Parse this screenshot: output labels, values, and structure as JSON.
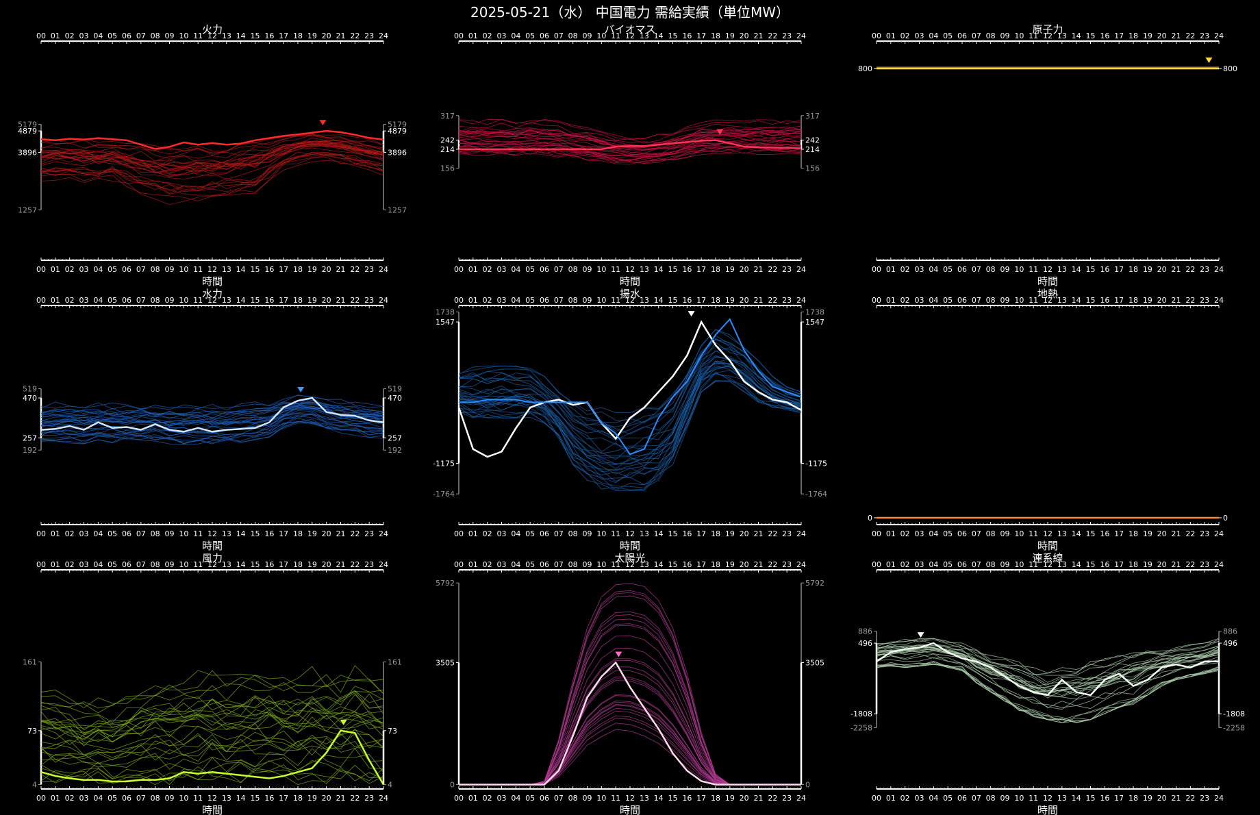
{
  "title": "2025-05-21（水） 中国電力 需給実績（単位MW）",
  "hour_labels": [
    "00",
    "01",
    "02",
    "03",
    "04",
    "05",
    "06",
    "07",
    "08",
    "09",
    "10",
    "11",
    "12",
    "13",
    "14",
    "15",
    "16",
    "17",
    "18",
    "19",
    "20",
    "21",
    "22",
    "23",
    "24"
  ],
  "xlabel": "時間",
  "chart_data": [
    {
      "id": "thermal",
      "type": "line",
      "title": "火力",
      "color": "#ff2a2a",
      "history_color": "#b01818",
      "ylim": [
        1257,
        5179
      ],
      "left_ticks": [
        5179,
        4879,
        3896,
        1257
      ],
      "right_ticks": [
        5179,
        4879,
        3896,
        1257
      ],
      "today_label": 3896,
      "peak": {
        "x": 19.75,
        "y": 4879
      },
      "series": [
        {
          "name": "2025-05-21",
          "values": [
            4500,
            4450,
            4520,
            4480,
            4550,
            4500,
            4450,
            4250,
            4050,
            4150,
            4350,
            4250,
            4320,
            4250,
            4300,
            4450,
            4550,
            4650,
            4720,
            4800,
            4879,
            4820,
            4700,
            4560,
            4480
          ]
        }
      ],
      "history_bands": {
        "low": [
          2500,
          2450,
          2450,
          2400,
          2400,
          2500,
          2200,
          1800,
          1550,
          1500,
          1500,
          1500,
          1500,
          1600,
          1700,
          1800,
          2300,
          3000,
          3300,
          3400,
          3400,
          3300,
          3100,
          2900,
          2700
        ],
        "high": [
          4400,
          4500,
          4500,
          4500,
          4400,
          4400,
          4300,
          4300,
          4200,
          4100,
          4200,
          4200,
          4200,
          4200,
          4300,
          4400,
          4500,
          4600,
          4700,
          4800,
          4800,
          4700,
          4600,
          4500,
          4400
        ]
      },
      "history_count": 30
    },
    {
      "id": "biomass",
      "type": "line",
      "title": "バイオマス",
      "color": "#ff3355",
      "history_color": "#c01040",
      "ylim": [
        156,
        317
      ],
      "left_ticks": [
        317,
        242,
        214,
        156
      ],
      "right_ticks": [
        317,
        242,
        214,
        156
      ],
      "today_label": 214,
      "peak": {
        "x": 18.3,
        "y": 242
      },
      "series": [
        {
          "name": "2025-05-21",
          "values": [
            214,
            214,
            214,
            214,
            214,
            214,
            214,
            214,
            214,
            214,
            214,
            222,
            224,
            224,
            228,
            232,
            236,
            240,
            242,
            232,
            222,
            220,
            219,
            218,
            217
          ]
        }
      ],
      "history_bands": {
        "low": [
          195,
          195,
          195,
          195,
          195,
          195,
          195,
          190,
          185,
          180,
          175,
          170,
          168,
          168,
          170,
          175,
          185,
          195,
          198,
          198,
          198,
          198,
          198,
          198,
          198
        ],
        "high": [
          305,
          305,
          305,
          305,
          305,
          305,
          305,
          300,
          290,
          280,
          270,
          260,
          255,
          255,
          260,
          270,
          285,
          300,
          305,
          305,
          305,
          305,
          305,
          305,
          305
        ]
      },
      "history_count": 30
    },
    {
      "id": "nuclear",
      "type": "line",
      "title": "原子力",
      "color": "#ffd54a",
      "history_color": "#c9a62c",
      "ylim": [
        0,
        800
      ],
      "left_ticks": [
        800
      ],
      "right_ticks": [
        800
      ],
      "today_label": 800,
      "peak": {
        "x": 23.3,
        "y": 800
      },
      "series": [
        {
          "name": "2025-05-21",
          "values": [
            800,
            800,
            800,
            800,
            800,
            800,
            800,
            800,
            800,
            800,
            800,
            800,
            800,
            800,
            800,
            800,
            800,
            800,
            800,
            800,
            800,
            800,
            800,
            800,
            800
          ]
        }
      ],
      "history_bands": {
        "low": [
          796,
          796,
          796,
          796,
          796,
          796,
          796,
          796,
          796,
          796,
          796,
          796,
          796,
          796,
          796,
          796,
          796,
          796,
          796,
          796,
          796,
          796,
          796,
          796,
          796
        ],
        "high": [
          804,
          804,
          804,
          804,
          804,
          804,
          804,
          804,
          804,
          804,
          804,
          804,
          804,
          804,
          804,
          804,
          804,
          804,
          804,
          804,
          804,
          804,
          804,
          804,
          804
        ]
      },
      "history_count": 6,
      "flat_top": true
    },
    {
      "id": "hydro",
      "type": "line",
      "title": "水力",
      "color": "#3d9bff",
      "history_color": "#1f5fb8",
      "ylim": [
        192,
        519
      ],
      "left_ticks": [
        519,
        470,
        257,
        192
      ],
      "right_ticks": [
        519,
        470,
        257,
        192
      ],
      "today_label": 257,
      "peak": {
        "x": 18.2,
        "y": 470
      },
      "series": [
        {
          "name": "2025-05-21",
          "values": [
            300,
            305,
            320,
            300,
            340,
            310,
            315,
            300,
            330,
            300,
            290,
            310,
            290,
            300,
            305,
            310,
            340,
            420,
            455,
            470,
            395,
            380,
            375,
            350,
            340
          ]
        }
      ],
      "history_bands": {
        "low": [
          230,
          225,
          230,
          225,
          235,
          230,
          240,
          235,
          240,
          225,
          220,
          225,
          225,
          230,
          230,
          240,
          260,
          300,
          330,
          330,
          300,
          280,
          270,
          260,
          250
        ],
        "high": [
          440,
          455,
          460,
          455,
          450,
          450,
          445,
          445,
          440,
          445,
          440,
          445,
          440,
          440,
          445,
          450,
          460,
          480,
          490,
          500,
          485,
          470,
          460,
          450,
          445
        ]
      },
      "history_count": 30
    },
    {
      "id": "pumped",
      "type": "line",
      "title": "揚水",
      "color": "#2a8cff",
      "history_color": "#1a5fa8",
      "ylim": [
        -1764,
        1738
      ],
      "left_ticks": [
        1738,
        1547,
        -1175,
        -1764
      ],
      "right_ticks": [
        1738,
        1547,
        -1175,
        -1764
      ],
      "today_label": -1175,
      "peak": {
        "x": 16.3,
        "y": 1547
      },
      "series": [
        {
          "name": "2025-05-21",
          "values": [
            -100,
            -900,
            -1050,
            -950,
            -500,
            -100,
            0,
            50,
            -50,
            0,
            -400,
            -700,
            -300,
            -100,
            200,
            500,
            900,
            1547,
            1100,
            800,
            400,
            200,
            50,
            0,
            -150
          ]
        },
        {
          "name": "history-highlight",
          "values": [
            0,
            0,
            50,
            50,
            50,
            0,
            0,
            0,
            0,
            0,
            -400,
            -600,
            -1000,
            -900,
            -300,
            100,
            400,
            900,
            1300,
            1600,
            1000,
            600,
            300,
            200,
            100
          ]
        }
      ],
      "history_bands": {
        "low": [
          -200,
          -300,
          -300,
          -300,
          -300,
          -300,
          -400,
          -700,
          -1200,
          -1500,
          -1700,
          -1700,
          -1700,
          -1700,
          -1500,
          -1200,
          -500,
          200,
          400,
          400,
          200,
          0,
          -100,
          -150,
          -200
        ],
        "high": [
          600,
          700,
          700,
          700,
          700,
          700,
          500,
          200,
          0,
          -100,
          -100,
          -200,
          -200,
          -100,
          0,
          200,
          600,
          1100,
          1400,
          1300,
          1100,
          800,
          500,
          300,
          200
        ]
      },
      "history_count": 30
    },
    {
      "id": "geothermal",
      "type": "line",
      "title": "地熱",
      "color": "#ff8a33",
      "history_color": "#c06020",
      "ylim": [
        0,
        1
      ],
      "left_ticks": [
        0.0
      ],
      "right_ticks": [
        0.0
      ],
      "today_label": "0.0",
      "peak": null,
      "series": [
        {
          "name": "2025-05-21",
          "values": [
            0,
            0,
            0,
            0,
            0,
            0,
            0,
            0,
            0,
            0,
            0,
            0,
            0,
            0,
            0,
            0,
            0,
            0,
            0,
            0,
            0,
            0,
            0,
            0,
            0
          ]
        }
      ],
      "history_bands": null,
      "history_count": 0,
      "flat_bottom": true
    },
    {
      "id": "wind",
      "type": "line",
      "title": "風力",
      "color": "#c8ff2a",
      "history_color": "#7aa81a",
      "ylim": [
        4,
        161
      ],
      "left_ticks": [
        161,
        73,
        4
      ],
      "right_ticks": [
        161,
        73,
        4
      ],
      "today_label": 4,
      "peak": {
        "x": 21.2,
        "y": 73
      },
      "series": [
        {
          "name": "2025-05-21",
          "values": [
            20,
            15,
            12,
            10,
            10,
            8,
            8,
            10,
            10,
            12,
            20,
            18,
            20,
            18,
            16,
            14,
            12,
            15,
            20,
            25,
            45,
            73,
            70,
            35,
            4
          ]
        }
      ],
      "history_bands": {
        "low": [
          4,
          4,
          4,
          4,
          4,
          4,
          4,
          4,
          4,
          4,
          4,
          4,
          4,
          4,
          4,
          4,
          4,
          4,
          4,
          4,
          4,
          4,
          4,
          4,
          4
        ],
        "high": [
          130,
          125,
          120,
          110,
          115,
          110,
          120,
          130,
          135,
          140,
          145,
          150,
          150,
          145,
          148,
          150,
          150,
          145,
          150,
          155,
          150,
          145,
          160,
          155,
          140
        ]
      },
      "history_count": 30
    },
    {
      "id": "solar",
      "type": "line",
      "title": "太陽光",
      "color": "#ff66cc",
      "history_color": "#b03a90",
      "ylim": [
        0,
        5792
      ],
      "left_ticks": [
        5792,
        3505,
        0
      ],
      "right_ticks": [
        5792,
        3505,
        0
      ],
      "today_label": 0,
      "peak": {
        "x": 11.2,
        "y": 3505
      },
      "series": [
        {
          "name": "2025-05-21",
          "values": [
            0,
            0,
            0,
            0,
            0,
            0,
            0,
            400,
            1400,
            2500,
            3100,
            3505,
            2800,
            2200,
            1600,
            900,
            400,
            100,
            0,
            0,
            0,
            0,
            0,
            0,
            0
          ]
        }
      ],
      "history_bands": {
        "low": [
          0,
          0,
          0,
          0,
          0,
          0,
          0,
          150,
          500,
          900,
          1100,
          1300,
          1250,
          1100,
          900,
          600,
          300,
          80,
          0,
          0,
          0,
          0,
          0,
          0,
          0
        ],
        "high": [
          0,
          0,
          0,
          0,
          0,
          0,
          100,
          1300,
          3000,
          4500,
          5400,
          5750,
          5792,
          5700,
          5300,
          4500,
          3200,
          1500,
          300,
          0,
          0,
          0,
          0,
          0,
          0
        ]
      },
      "history_count": 30,
      "bell": true
    },
    {
      "id": "interconnect",
      "type": "line",
      "title": "連系線",
      "color": "#f4fff4",
      "history_color": "#a9c9a9",
      "ylim": [
        -2258,
        886
      ],
      "left_ticks": [
        886,
        496,
        -1808,
        -2258
      ],
      "right_ticks": [
        886,
        496,
        -1808,
        -2258
      ],
      "today_label": -1808,
      "peak": {
        "x": 3.1,
        "y": 496
      },
      "series": [
        {
          "name": "2025-05-21",
          "values": [
            -100,
            200,
            300,
            350,
            496,
            200,
            0,
            -100,
            -300,
            -600,
            -900,
            -1100,
            -1200,
            -700,
            -1100,
            -1200,
            -700,
            -500,
            -900,
            -700,
            -300,
            -200,
            -300,
            -100,
            -100
          ]
        }
      ],
      "history_bands": {
        "low": [
          -300,
          -250,
          -300,
          -250,
          -200,
          -300,
          -400,
          -800,
          -1100,
          -1400,
          -1700,
          -1900,
          -2000,
          -2100,
          -2100,
          -2000,
          -1800,
          -1600,
          -1500,
          -1200,
          -900,
          -700,
          -600,
          -500,
          -400
        ],
        "high": [
          500,
          600,
          650,
          700,
          650,
          600,
          500,
          300,
          100,
          0,
          -100,
          -300,
          -400,
          -300,
          -200,
          -100,
          0,
          100,
          200,
          300,
          300,
          400,
          450,
          500,
          650
        ]
      },
      "history_count": 30
    }
  ]
}
